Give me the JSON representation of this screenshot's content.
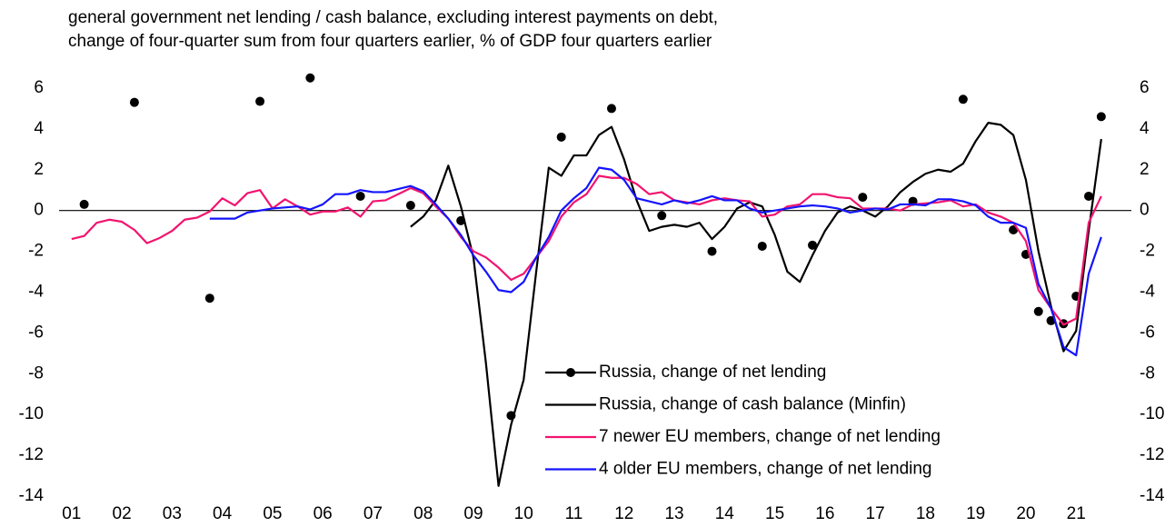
{
  "chart_data": {
    "type": "line",
    "title": "general government net lending / cash balance, excluding interest payments on debt,",
    "subtitle": "change of four-quarter sum from four quarters earlier, % of GDP four quarters earlier",
    "x": [
      2001,
      2001.25,
      2001.5,
      2001.75,
      2002,
      2002.25,
      2002.5,
      2002.75,
      2003,
      2003.25,
      2003.5,
      2003.75,
      2004,
      2004.25,
      2004.5,
      2004.75,
      2005,
      2005.25,
      2005.5,
      2005.75,
      2006,
      2006.25,
      2006.5,
      2006.75,
      2007,
      2007.25,
      2007.5,
      2007.75,
      2008,
      2008.25,
      2008.5,
      2008.75,
      2009,
      2009.25,
      2009.5,
      2009.75,
      2010,
      2010.25,
      2010.5,
      2010.75,
      2011,
      2011.25,
      2011.5,
      2011.75,
      2012,
      2012.25,
      2012.5,
      2012.75,
      2013,
      2013.25,
      2013.5,
      2013.75,
      2014,
      2014.25,
      2014.5,
      2014.75,
      2015,
      2015.25,
      2015.5,
      2015.75,
      2016,
      2016.25,
      2016.5,
      2016.75,
      2017,
      2017.25,
      2017.5,
      2017.75,
      2018,
      2018.25,
      2018.5,
      2018.75,
      2019,
      2019.25,
      2019.5,
      2019.75,
      2020,
      2020.25,
      2020.5,
      2020.75,
      2021,
      2021.25,
      2021.5
    ],
    "xlim": [
      2000.75,
      2022.1
    ],
    "xticks": [
      {
        "value": 2001,
        "label": "01"
      },
      {
        "value": 2002,
        "label": "02"
      },
      {
        "value": 2003,
        "label": "03"
      },
      {
        "value": 2004,
        "label": "04"
      },
      {
        "value": 2005,
        "label": "05"
      },
      {
        "value": 2006,
        "label": "06"
      },
      {
        "value": 2007,
        "label": "07"
      },
      {
        "value": 2008,
        "label": "08"
      },
      {
        "value": 2009,
        "label": "09"
      },
      {
        "value": 2010,
        "label": "10"
      },
      {
        "value": 2011,
        "label": "11"
      },
      {
        "value": 2012,
        "label": "12"
      },
      {
        "value": 2013,
        "label": "13"
      },
      {
        "value": 2014,
        "label": "14"
      },
      {
        "value": 2015,
        "label": "15"
      },
      {
        "value": 2016,
        "label": "16"
      },
      {
        "value": 2017,
        "label": "17"
      },
      {
        "value": 2018,
        "label": "18"
      },
      {
        "value": 2019,
        "label": "19"
      },
      {
        "value": 2020,
        "label": "20"
      },
      {
        "value": 2021,
        "label": "21"
      }
    ],
    "ylim": [
      -14,
      7
    ],
    "yticks": [
      -14,
      -12,
      -10,
      -8,
      -6,
      -4,
      -2,
      0,
      2,
      4,
      6
    ],
    "y2lim": [
      -14,
      7
    ],
    "y2ticks": [
      -14,
      -12,
      -10,
      -8,
      -6,
      -4,
      -2,
      0,
      2,
      4,
      6
    ],
    "grid": false,
    "legend": "lower right",
    "series": [
      {
        "name": "Russia, change of net lending",
        "color": "#000000",
        "marker": "dot",
        "line": false,
        "values": [
          null,
          0.3,
          null,
          null,
          null,
          5.3,
          null,
          null,
          null,
          null,
          null,
          -4.3,
          null,
          null,
          null,
          5.35,
          null,
          null,
          null,
          6.5,
          null,
          null,
          null,
          0.7,
          null,
          null,
          null,
          0.25,
          null,
          null,
          null,
          -0.5,
          null,
          null,
          null,
          -10.05,
          null,
          null,
          null,
          3.6,
          null,
          null,
          null,
          5.0,
          null,
          null,
          null,
          -0.25,
          null,
          null,
          null,
          -2.0,
          null,
          null,
          null,
          -1.75,
          null,
          null,
          null,
          -1.7,
          null,
          null,
          null,
          0.65,
          null,
          null,
          null,
          0.45,
          null,
          null,
          null,
          5.45,
          null,
          null,
          null,
          -0.95,
          -2.15,
          -4.95,
          -5.4,
          -5.55,
          -4.2,
          0.7,
          4.6
        ]
      },
      {
        "name": "Russia, change of cash balance (Minfin)",
        "color": "#000000",
        "marker": "none",
        "line": true,
        "values": [
          null,
          null,
          null,
          null,
          null,
          null,
          null,
          null,
          null,
          null,
          null,
          null,
          null,
          null,
          null,
          null,
          null,
          null,
          null,
          null,
          null,
          null,
          null,
          null,
          null,
          null,
          null,
          -0.8,
          -0.3,
          0.5,
          2.2,
          0.2,
          -2.3,
          -7.5,
          -13.5,
          -10.5,
          -8.3,
          -3,
          2.1,
          1.7,
          2.7,
          2.7,
          3.7,
          4.1,
          2.5,
          0.5,
          -1.0,
          -0.8,
          -0.7,
          -0.8,
          -0.6,
          -1.4,
          -0.8,
          0.1,
          0.4,
          0.2,
          -1.2,
          -3.0,
          -3.5,
          -2.2,
          -1.0,
          -0.1,
          0.2,
          0.0,
          -0.3,
          0.2,
          0.9,
          1.4,
          1.8,
          2.0,
          1.9,
          2.3,
          3.4,
          4.3,
          4.2,
          3.7,
          1.5,
          -2.0,
          -4.7,
          -6.9,
          -5.9,
          -1.0,
          3.5
        ]
      },
      {
        "name": "7 newer EU members, change of net lending",
        "color": "#f2136f",
        "marker": "none",
        "line": true,
        "values": [
          -1.4,
          -1.25,
          -0.6,
          -0.45,
          -0.55,
          -0.95,
          -1.6,
          -1.35,
          -1.0,
          -0.45,
          -0.35,
          -0.05,
          0.6,
          0.25,
          0.85,
          1.0,
          0.1,
          0.55,
          0.2,
          -0.2,
          -0.05,
          -0.05,
          0.15,
          -0.3,
          0.45,
          0.5,
          0.8,
          1.1,
          0.85,
          0.2,
          -0.4,
          -1.3,
          -2.0,
          -2.3,
          -2.8,
          -3.4,
          -3.1,
          -2.3,
          -1.5,
          -0.3,
          0.4,
          0.8,
          1.7,
          1.6,
          1.6,
          1.3,
          0.8,
          0.9,
          0.5,
          0.4,
          0.3,
          0.5,
          0.6,
          0.5,
          0.45,
          -0.3,
          -0.2,
          0.2,
          0.3,
          0.8,
          0.8,
          0.65,
          0.6,
          0.1,
          0.1,
          0.1,
          0.0,
          0.3,
          0.35,
          0.4,
          0.5,
          0.2,
          0.3,
          -0.1,
          -0.3,
          -0.6,
          -1.5,
          -3.9,
          -4.8,
          -5.6,
          -5.3,
          -0.6,
          0.7
        ]
      },
      {
        "name": "4 older EU members, change of net lending",
        "color": "#1414ff",
        "marker": "none",
        "line": true,
        "values": [
          null,
          null,
          null,
          null,
          null,
          null,
          null,
          null,
          null,
          null,
          null,
          -0.4,
          -0.4,
          -0.4,
          -0.1,
          0.0,
          0.1,
          0.15,
          0.2,
          0.05,
          0.3,
          0.8,
          0.8,
          1.0,
          0.9,
          0.9,
          1.05,
          1.2,
          0.95,
          0.3,
          -0.4,
          -1.2,
          -2.2,
          -3.0,
          -3.9,
          -4.0,
          -3.5,
          -2.3,
          -1.3,
          0.0,
          0.6,
          1.1,
          2.1,
          2.0,
          1.5,
          0.6,
          0.45,
          0.3,
          0.5,
          0.35,
          0.5,
          0.7,
          0.5,
          0.5,
          0.1,
          -0.1,
          0.0,
          0.1,
          0.2,
          0.25,
          0.2,
          0.1,
          -0.1,
          0.0,
          0.1,
          0.05,
          0.3,
          0.3,
          0.25,
          0.55,
          0.55,
          0.45,
          0.25,
          -0.3,
          -0.6,
          -0.6,
          -0.85,
          -3.6,
          -4.8,
          -6.7,
          -7.1,
          -3.1,
          -1.3
        ]
      }
    ]
  }
}
